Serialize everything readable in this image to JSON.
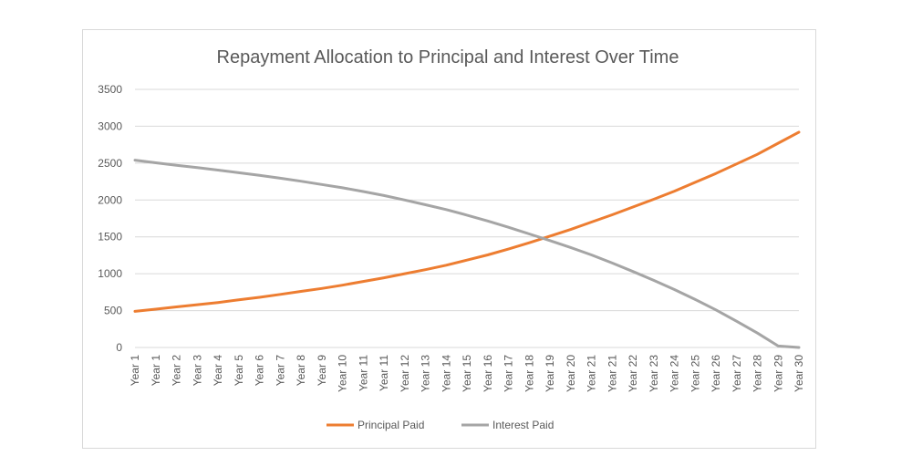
{
  "chart_data": {
    "type": "line",
    "title": "Repayment Allocation to Principal and Interest Over Time",
    "xlabel": "",
    "ylabel": "",
    "ylim": [
      0,
      3500
    ],
    "yticks": [
      0,
      500,
      1000,
      1500,
      2000,
      2500,
      3000,
      3500
    ],
    "grid": true,
    "legend_position": "bottom",
    "categories": [
      "Year 1",
      "Year 1",
      "Year 2",
      "Year 3",
      "Year 4",
      "Year 5",
      "Year 6",
      "Year 7",
      "Year 8",
      "Year 9",
      "Year 10",
      "Year 11",
      "Year 11",
      "Year 12",
      "Year 13",
      "Year 14",
      "Year 15",
      "Year 16",
      "Year 17",
      "Year 18",
      "Year 19",
      "Year 20",
      "Year 21",
      "Year 21",
      "Year 22",
      "Year 23",
      "Year 24",
      "Year 25",
      "Year 26",
      "Year 27",
      "Year 28",
      "Year 29",
      "Year 30"
    ],
    "series": [
      {
        "name": "Principal Paid",
        "color": "#ed7d31",
        "values": [
          490,
          520,
          550,
          580,
          610,
          645,
          680,
          720,
          760,
          800,
          845,
          895,
          945,
          1000,
          1055,
          1115,
          1185,
          1255,
          1335,
          1420,
          1510,
          1600,
          1700,
          1800,
          1905,
          2010,
          2120,
          2240,
          2360,
          2490,
          2620,
          2770,
          2920
        ]
      },
      {
        "name": "Interest Paid",
        "color": "#a5a5a5",
        "values": [
          2540,
          2505,
          2470,
          2440,
          2405,
          2370,
          2335,
          2295,
          2255,
          2210,
          2165,
          2115,
          2060,
          2000,
          1935,
          1870,
          1795,
          1715,
          1630,
          1540,
          1450,
          1355,
          1255,
          1145,
          1030,
          910,
          785,
          650,
          510,
          355,
          195,
          20,
          0
        ]
      }
    ]
  }
}
